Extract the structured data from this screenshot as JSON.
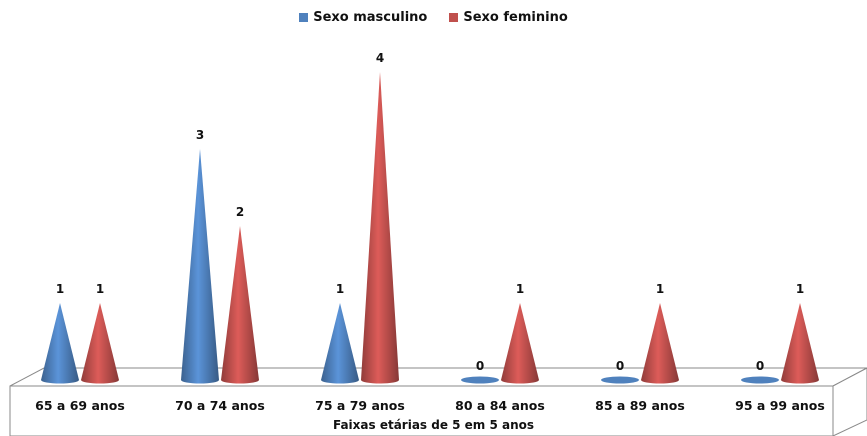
{
  "chart_data": {
    "type": "bar",
    "bar_shape": "cone",
    "categories": [
      "65 a 69 anos",
      "70 a 74 anos",
      "75 a 79 anos",
      "80 a 84 anos",
      "85 a 89 anos",
      "95 a 99 anos"
    ],
    "series": [
      {
        "name": "Sexo masculino",
        "color": "#4F81BD",
        "values": [
          1,
          3,
          1,
          0,
          0,
          0
        ]
      },
      {
        "name": "Sexo feminino",
        "color": "#C0504D",
        "values": [
          1,
          2,
          4,
          1,
          1,
          1
        ]
      }
    ],
    "data_labels": true,
    "xlabel": "Faixas etárias de 5 em 5 anos",
    "ylabel": "",
    "ylim": [
      0,
      4
    ],
    "legend_position": "top",
    "grid": false
  }
}
